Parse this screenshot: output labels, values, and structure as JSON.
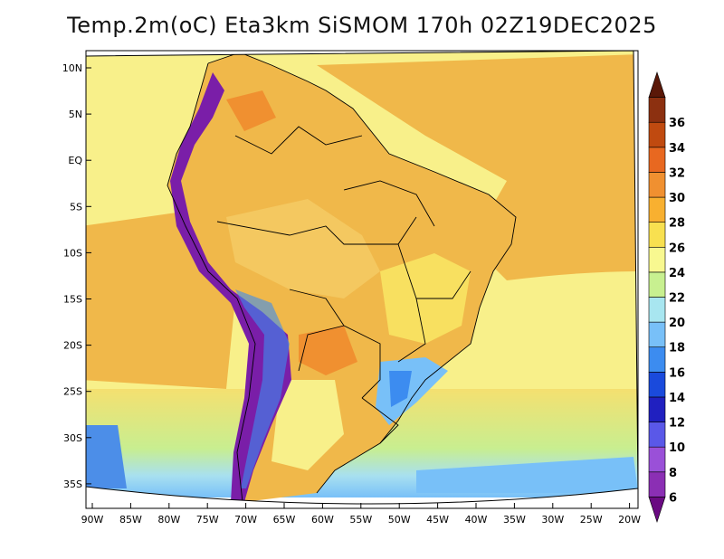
{
  "title": "Temp.2m(oC) Eta3km SiSMOM 170h 02Z19DEC2025",
  "lat_labels": [
    "10N",
    "5N",
    "EQ",
    "5S",
    "10S",
    "15S",
    "20S",
    "25S",
    "30S",
    "35S"
  ],
  "lon_labels": [
    "90W",
    "85W",
    "80W",
    "75W",
    "70W",
    "65W",
    "60W",
    "55W",
    "50W",
    "45W",
    "40W",
    "35W",
    "30W",
    "25W",
    "20W"
  ],
  "colorbar": {
    "labels": [
      "6",
      "8",
      "10",
      "12",
      "14",
      "16",
      "18",
      "20",
      "22",
      "24",
      "26",
      "28",
      "30",
      "32",
      "34",
      "36"
    ],
    "colors": [
      "#6a0a82",
      "#8b2fb4",
      "#9a50d8",
      "#5a58e8",
      "#2020c0",
      "#1a4adc",
      "#3c8cf0",
      "#78c0f8",
      "#a8e6f0",
      "#c8f090",
      "#f8f890",
      "#f8e050",
      "#f8b030",
      "#f09030",
      "#e86820",
      "#c04a10",
      "#8c3010",
      "#5a1808"
    ]
  },
  "map": {
    "ocean_color": "#f4d67a",
    "land_color": "#f0b84a"
  }
}
